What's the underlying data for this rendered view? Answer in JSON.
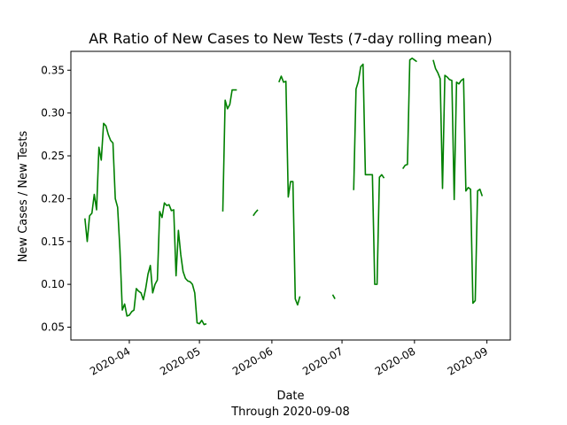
{
  "chart_data": {
    "type": "line",
    "title": "AR Ratio of New Cases to New Tests (7-day rolling mean)",
    "xlabel": "Date",
    "xlabel_sub": "Through 2020-09-08",
    "ylabel": "New Cases / New Tests",
    "x_tick_labels": [
      "2020-04",
      "2020-05",
      "2020-06",
      "2020-07",
      "2020-08",
      "2020-09"
    ],
    "y_tick_labels": [
      "0.05",
      "0.10",
      "0.15",
      "0.20",
      "0.25",
      "0.30",
      "0.35"
    ],
    "xlim": [
      "2020-03-07",
      "2020-09-11"
    ],
    "ylim": [
      0.035,
      0.372
    ],
    "grid": false,
    "color": "#008000",
    "series": [
      {
        "segments": [
          [
            [
              "2020-03-13",
              0.177
            ],
            [
              "2020-03-14",
              0.15
            ],
            [
              "2020-03-15",
              0.18
            ],
            [
              "2020-03-16",
              0.183
            ],
            [
              "2020-03-17",
              0.205
            ],
            [
              "2020-03-18",
              0.187
            ],
            [
              "2020-03-19",
              0.26
            ],
            [
              "2020-03-20",
              0.245
            ],
            [
              "2020-03-21",
              0.288
            ],
            [
              "2020-03-22",
              0.285
            ],
            [
              "2020-03-23",
              0.275
            ],
            [
              "2020-03-24",
              0.268
            ],
            [
              "2020-03-25",
              0.265
            ],
            [
              "2020-03-26",
              0.2
            ],
            [
              "2020-03-27",
              0.19
            ],
            [
              "2020-03-28",
              0.14
            ],
            [
              "2020-03-29",
              0.07
            ],
            [
              "2020-03-30",
              0.077
            ],
            [
              "2020-03-31",
              0.063
            ],
            [
              "2020-04-01",
              0.064
            ],
            [
              "2020-04-02",
              0.068
            ],
            [
              "2020-04-03",
              0.07
            ],
            [
              "2020-04-04",
              0.095
            ],
            [
              "2020-04-05",
              0.092
            ],
            [
              "2020-04-06",
              0.09
            ],
            [
              "2020-04-07",
              0.082
            ],
            [
              "2020-04-08",
              0.095
            ],
            [
              "2020-04-09",
              0.112
            ],
            [
              "2020-04-10",
              0.122
            ],
            [
              "2020-04-11",
              0.09
            ],
            [
              "2020-04-12",
              0.1
            ],
            [
              "2020-04-13",
              0.105
            ],
            [
              "2020-04-14",
              0.185
            ],
            [
              "2020-04-15",
              0.178
            ],
            [
              "2020-04-16",
              0.195
            ],
            [
              "2020-04-17",
              0.192
            ],
            [
              "2020-04-18",
              0.193
            ],
            [
              "2020-04-19",
              0.186
            ],
            [
              "2020-04-20",
              0.187
            ],
            [
              "2020-04-21",
              0.11
            ],
            [
              "2020-04-22",
              0.163
            ],
            [
              "2020-04-23",
              0.135
            ],
            [
              "2020-04-24",
              0.115
            ],
            [
              "2020-04-25",
              0.107
            ],
            [
              "2020-04-26",
              0.104
            ],
            [
              "2020-04-27",
              0.103
            ],
            [
              "2020-04-28",
              0.1
            ],
            [
              "2020-04-29",
              0.09
            ],
            [
              "2020-04-30",
              0.055
            ],
            [
              "2020-05-01",
              0.054
            ],
            [
              "2020-05-02",
              0.058
            ],
            [
              "2020-05-03",
              0.053
            ],
            [
              "2020-05-04",
              0.054
            ]
          ],
          [
            [
              "2020-05-11",
              0.185
            ],
            [
              "2020-05-12",
              0.315
            ],
            [
              "2020-05-13",
              0.305
            ],
            [
              "2020-05-14",
              0.31
            ],
            [
              "2020-05-15",
              0.327
            ],
            [
              "2020-05-16",
              0.327
            ],
            [
              "2020-05-17",
              0.327
            ]
          ],
          [
            [
              "2020-05-24",
              0.18
            ],
            [
              "2020-05-25",
              0.184
            ],
            [
              "2020-05-26",
              0.187
            ]
          ],
          [
            [
              "2020-06-04",
              0.336
            ],
            [
              "2020-06-05",
              0.343
            ],
            [
              "2020-06-06",
              0.336
            ],
            [
              "2020-06-07",
              0.337
            ],
            [
              "2020-06-08",
              0.202
            ],
            [
              "2020-06-09",
              0.22
            ],
            [
              "2020-06-10",
              0.22
            ],
            [
              "2020-06-11",
              0.083
            ],
            [
              "2020-06-12",
              0.076
            ],
            [
              "2020-06-13",
              0.086
            ]
          ],
          [
            [
              "2020-06-27",
              0.088
            ],
            [
              "2020-06-28",
              0.083
            ]
          ],
          [
            [
              "2020-07-06",
              0.21
            ],
            [
              "2020-07-07",
              0.328
            ],
            [
              "2020-07-08",
              0.337
            ],
            [
              "2020-07-09",
              0.354
            ],
            [
              "2020-07-10",
              0.357
            ],
            [
              "2020-07-11",
              0.228
            ],
            [
              "2020-07-12",
              0.228
            ],
            [
              "2020-07-13",
              0.228
            ],
            [
              "2020-07-14",
              0.228
            ],
            [
              "2020-07-15",
              0.1
            ],
            [
              "2020-07-16",
              0.1
            ],
            [
              "2020-07-17",
              0.225
            ],
            [
              "2020-07-18",
              0.228
            ],
            [
              "2020-07-19",
              0.224
            ]
          ],
          [
            [
              "2020-07-27",
              0.235
            ],
            [
              "2020-07-28",
              0.239
            ],
            [
              "2020-07-29",
              0.24
            ],
            [
              "2020-07-30",
              0.362
            ],
            [
              "2020-07-31",
              0.364
            ],
            [
              "2020-08-01",
              0.362
            ],
            [
              "2020-08-02",
              0.36
            ]
          ],
          [
            [
              "2020-08-09",
              0.362
            ],
            [
              "2020-08-10",
              0.352
            ],
            [
              "2020-08-11",
              0.347
            ],
            [
              "2020-08-12",
              0.34
            ],
            [
              "2020-08-13",
              0.212
            ],
            [
              "2020-08-14",
              0.344
            ],
            [
              "2020-08-15",
              0.342
            ],
            [
              "2020-08-16",
              0.339
            ],
            [
              "2020-08-17",
              0.338
            ],
            [
              "2020-08-18",
              0.199
            ],
            [
              "2020-08-19",
              0.336
            ],
            [
              "2020-08-20",
              0.334
            ],
            [
              "2020-08-21",
              0.338
            ],
            [
              "2020-08-22",
              0.34
            ],
            [
              "2020-08-23",
              0.209
            ],
            [
              "2020-08-24",
              0.213
            ],
            [
              "2020-08-25",
              0.211
            ],
            [
              "2020-08-26",
              0.078
            ],
            [
              "2020-08-27",
              0.081
            ],
            [
              "2020-08-28",
              0.209
            ],
            [
              "2020-08-29",
              0.211
            ],
            [
              "2020-08-30",
              0.203
            ]
          ]
        ]
      }
    ]
  }
}
